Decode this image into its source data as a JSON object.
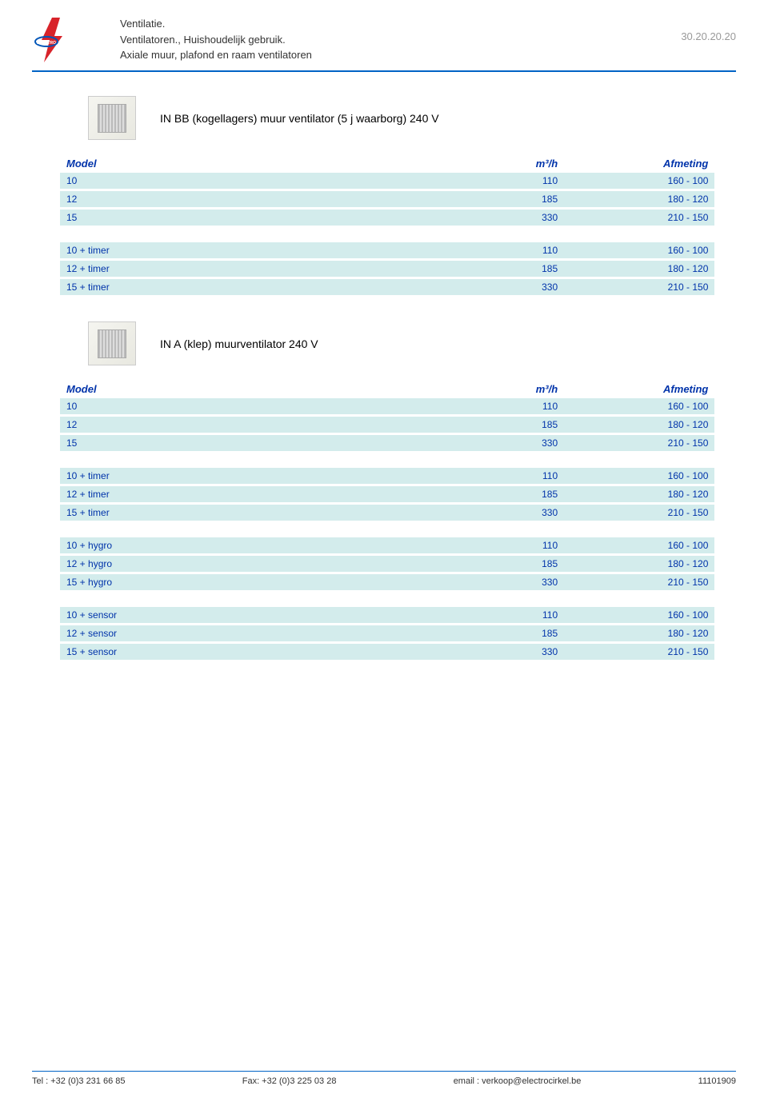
{
  "header": {
    "line1": "Ventilatie.",
    "line2": "Ventilatoren., Huishoudelijk gebruik.",
    "line3": "Axiale muur, plafond en raam ventilatoren",
    "code": "30.20.20.20"
  },
  "colors": {
    "row_bg": "#d3ecec",
    "header_text": "#0033aa",
    "rule": "#0063c5"
  },
  "table_headers": {
    "model": "Model",
    "m3h": "m³/h",
    "afmeting": "Afmeting"
  },
  "section1": {
    "title": "IN BB (kogellagers) muur ventilator (5 j waarborg) 240 V",
    "groups": [
      {
        "rows": [
          {
            "model": "10",
            "m3h": "110",
            "afm": "160 - 100"
          },
          {
            "model": "12",
            "m3h": "185",
            "afm": "180 - 120"
          },
          {
            "model": "15",
            "m3h": "330",
            "afm": "210 - 150"
          }
        ]
      },
      {
        "rows": [
          {
            "model": "10  + timer",
            "m3h": "110",
            "afm": "160 - 100"
          },
          {
            "model": "12  + timer",
            "m3h": "185",
            "afm": "180 - 120"
          },
          {
            "model": "15  + timer",
            "m3h": "330",
            "afm": "210 - 150"
          }
        ]
      }
    ]
  },
  "section2": {
    "title": "IN A (klep) muurventilator 240 V",
    "groups": [
      {
        "rows": [
          {
            "model": "10",
            "m3h": "110",
            "afm": "160 - 100"
          },
          {
            "model": "12",
            "m3h": "185",
            "afm": "180 - 120"
          },
          {
            "model": "15",
            "m3h": "330",
            "afm": "210 - 150"
          }
        ]
      },
      {
        "rows": [
          {
            "model": "10 + timer",
            "m3h": "110",
            "afm": "160 - 100"
          },
          {
            "model": "12 + timer",
            "m3h": "185",
            "afm": "180 - 120"
          },
          {
            "model": "15 + timer",
            "m3h": "330",
            "afm": "210 - 150"
          }
        ]
      },
      {
        "rows": [
          {
            "model": "10 + hygro",
            "m3h": "110",
            "afm": "160 - 100"
          },
          {
            "model": "12 + hygro",
            "m3h": "185",
            "afm": "180 - 120"
          },
          {
            "model": "15 + hygro",
            "m3h": "330",
            "afm": "210 - 150"
          }
        ]
      },
      {
        "rows": [
          {
            "model": "10 + sensor",
            "m3h": "110",
            "afm": "160 - 100"
          },
          {
            "model": "12 + sensor",
            "m3h": "185",
            "afm": "180 - 120"
          },
          {
            "model": "15 + sensor",
            "m3h": "330",
            "afm": "210 - 150"
          }
        ]
      }
    ]
  },
  "footer": {
    "tel": "Tel : +32 (0)3 231 66 85",
    "fax": "Fax: +32 (0)3 225 03 28",
    "email": "email : verkoop@electrocirkel.be",
    "num": "11101909"
  }
}
